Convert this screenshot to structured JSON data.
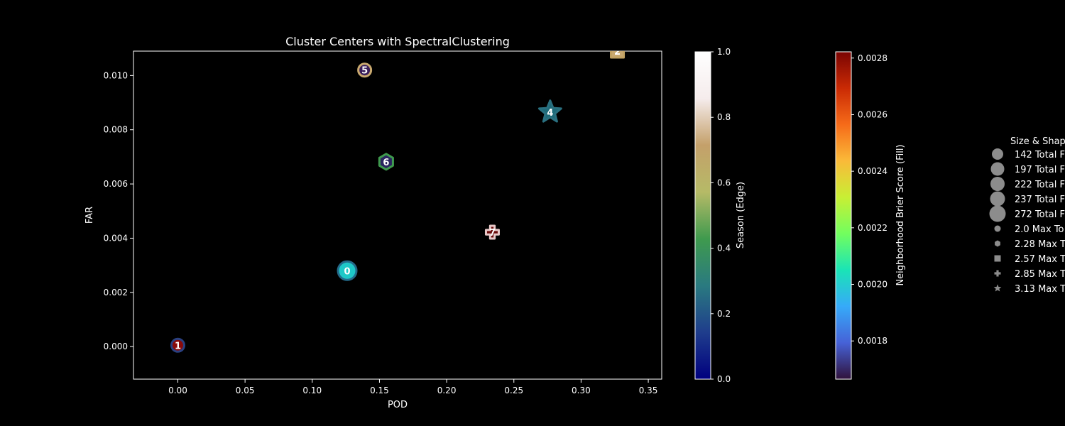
{
  "chart_data": {
    "type": "scatter",
    "title": "Cluster Centers with SpectralClustering",
    "xlabel": "POD",
    "ylabel": "FAR",
    "xlim": [
      -0.033,
      0.36
    ],
    "ylim": [
      -0.0012,
      0.0109
    ],
    "xticks": [
      "0.00",
      "0.05",
      "0.10",
      "0.15",
      "0.20",
      "0.25",
      "0.30",
      "0.35"
    ],
    "xtick_values": [
      0,
      0.05,
      0.1,
      0.15,
      0.2,
      0.25,
      0.3,
      0.35
    ],
    "yticks": [
      "0.000",
      "0.002",
      "0.004",
      "0.006",
      "0.008",
      "0.010"
    ],
    "ytick_values": [
      0,
      0.002,
      0.004,
      0.006,
      0.008,
      0.01
    ],
    "grid": false,
    "points": [
      {
        "label": "0",
        "x": 0.126,
        "y": 0.0028,
        "shape": "circle",
        "fill": "#1ec8c8",
        "edge": "#236a8a",
        "size_class": "large"
      },
      {
        "label": "1",
        "x": 0.0,
        "y": 5e-05,
        "shape": "circle",
        "fill": "#8a0a0a",
        "edge": "#2a4080",
        "size_class": "small"
      },
      {
        "label": "2",
        "x": 0.327,
        "y": 0.0109,
        "shape": "square",
        "fill": "#c8a870",
        "edge": "#c2a263",
        "size_class": "small"
      },
      {
        "label": "4",
        "x": 0.277,
        "y": 0.00865,
        "shape": "star",
        "fill": "#1d6b7a",
        "edge": "#2a7080",
        "size_class": "large"
      },
      {
        "label": "5",
        "x": 0.139,
        "y": 0.0102,
        "shape": "circle",
        "fill": "#3a1e5a",
        "edge": "#c9a96f",
        "size_class": "small"
      },
      {
        "label": "6",
        "x": 0.155,
        "y": 0.00682,
        "shape": "hexagon",
        "fill": "#2a2560",
        "edge": "#3f9a4e",
        "size_class": "medium"
      },
      {
        "label": "7",
        "x": 0.234,
        "y": 0.00422,
        "shape": "plus",
        "fill": "#6a0a0a",
        "edge": "#e8c8c8",
        "size_class": "small"
      }
    ],
    "colorbar_season": {
      "label": "Season (Edge)",
      "ticks": [
        "0.0",
        "0.2",
        "0.4",
        "0.6",
        "0.8",
        "1.0"
      ],
      "colors": [
        "#00007f",
        "#1f3d8c",
        "#2a7a80",
        "#3f9a4e",
        "#b6ba67",
        "#c4a06a",
        "#f5ecec",
        "#ffffff"
      ]
    },
    "colorbar_brier": {
      "label": "Neighborhood Brier Score (Fill)",
      "ticks": [
        "0.0018",
        "0.0020",
        "0.0022",
        "0.0024",
        "0.0026",
        "0.0028"
      ],
      "tick_values": [
        0.0018,
        0.002,
        0.0022,
        0.0024,
        0.0026,
        0.0028
      ],
      "range": [
        0.001665,
        0.002822
      ],
      "colors": [
        "#30123b",
        "#4662d7",
        "#36aaf9",
        "#1ae4b6",
        "#72fe5e",
        "#c8ef34",
        "#faba39",
        "#f66b19",
        "#ca2a04",
        "#7a0403"
      ]
    },
    "legend": {
      "title": "Size & Shap",
      "placement": "right",
      "entries": [
        {
          "label": "142 Total F",
          "marker": "circle",
          "size": "s1"
        },
        {
          "label": "197 Total F",
          "marker": "circle",
          "size": "s2"
        },
        {
          "label": "222 Total F",
          "marker": "circle",
          "size": "s3"
        },
        {
          "label": "237 Total F",
          "marker": "circle",
          "size": "s4"
        },
        {
          "label": "272 Total F",
          "marker": "circle",
          "size": "s5"
        },
        {
          "label": "2.0 Max To",
          "marker": "circle",
          "size": "small"
        },
        {
          "label": "2.28 Max T",
          "marker": "hexagon",
          "size": "small"
        },
        {
          "label": "2.57 Max T",
          "marker": "square",
          "size": "small"
        },
        {
          "label": "2.85 Max T",
          "marker": "plus",
          "size": "small"
        },
        {
          "label": "3.13 Max T",
          "marker": "star",
          "size": "small"
        }
      ]
    }
  }
}
